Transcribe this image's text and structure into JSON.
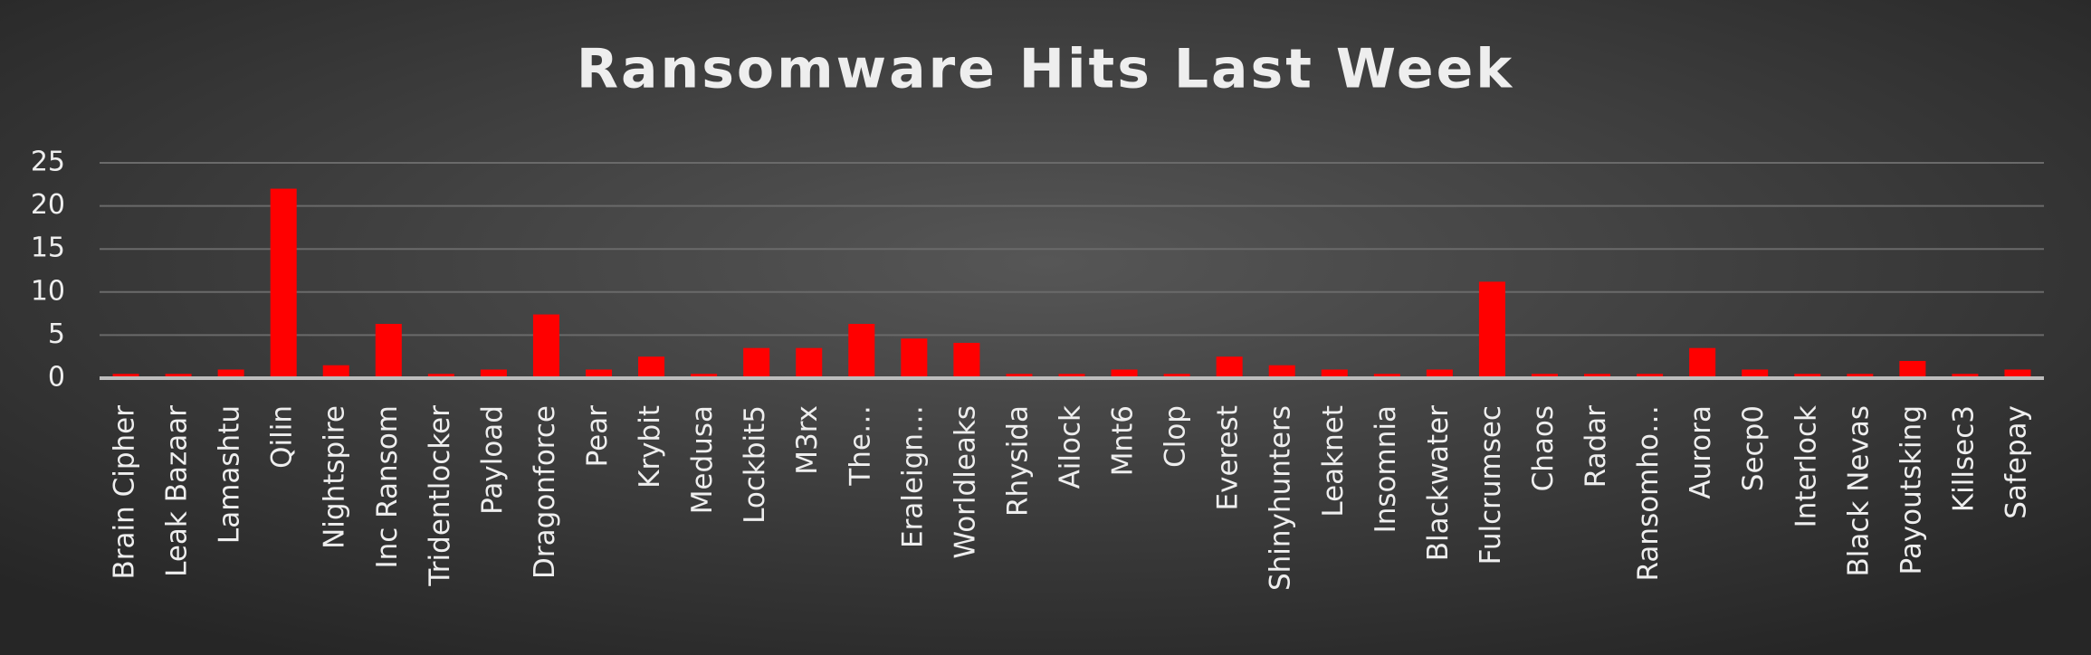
{
  "chart_data": {
    "type": "bar",
    "title": "Ransomware Hits Last Week",
    "categories": [
      "Brain Cipher",
      "Leak Bazaar",
      "Lamashtu",
      "Qilin",
      "Nightspire",
      "Inc Ransom",
      "Tridentlocker",
      "Payload",
      "Dragonforce",
      "Pear",
      "Krybit",
      "Medusa",
      "Lockbit5",
      "M3rx",
      "The…",
      "Eraleign…",
      "Worldleaks",
      "Rhysida",
      "Ailock",
      "Mnt6",
      "Clop",
      "Everest",
      "Shinyhunters",
      "Leaknet",
      "Insomnia",
      "Blackwater",
      "Fulcrumsec",
      "Chaos",
      "Radar",
      "Ransomho…",
      "Aurora",
      "Secp0",
      "Interlock",
      "Black Nevas",
      "Payoutsking",
      "Killsec3",
      "Safepay"
    ],
    "values": [
      0.5,
      0.5,
      1,
      22,
      1.5,
      6.3,
      0.5,
      1,
      7.4,
      1,
      2.5,
      0.5,
      3.5,
      3.5,
      6.3,
      4.6,
      4.1,
      0.5,
      0.5,
      1,
      0.5,
      2.5,
      1.5,
      1,
      0.5,
      1,
      11.2,
      0.5,
      0.5,
      0.5,
      3.5,
      1,
      0.5,
      0.5,
      2,
      0.5,
      1
    ],
    "color": "#ff0000",
    "ylim": [
      0,
      25
    ],
    "yticks": [
      0,
      5,
      10,
      15,
      20,
      25
    ],
    "grid": true
  }
}
